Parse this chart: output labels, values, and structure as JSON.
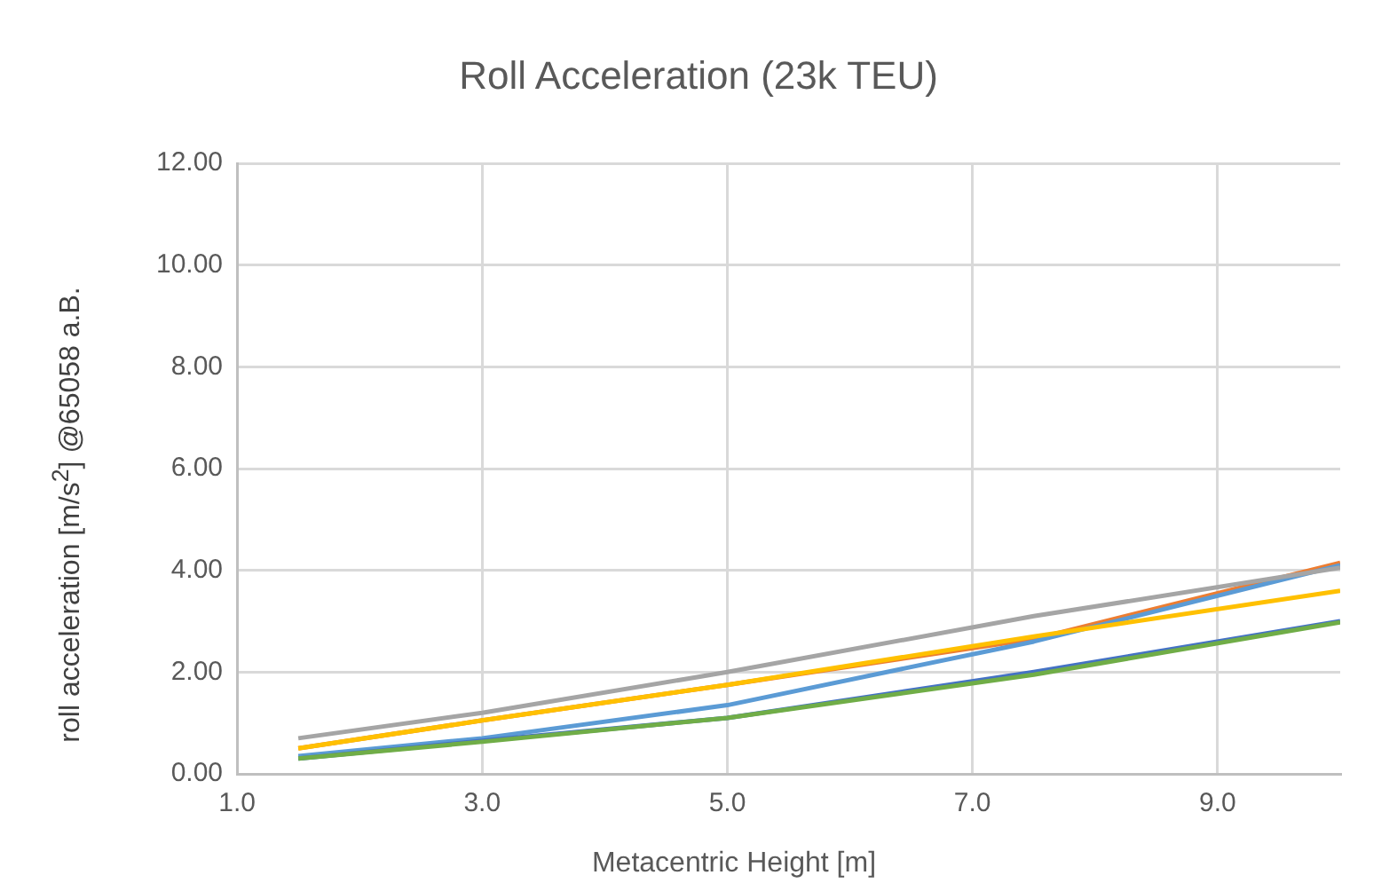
{
  "chart_data": {
    "type": "line",
    "title": "Roll Acceleration (23k TEU)",
    "xlabel": "Metacentric Height [m]",
    "ylabel": "roll acceleration [m/s$^{2}$] @65058 a.B.",
    "x": [
      1.5,
      3,
      5,
      7.5,
      10
    ],
    "xlim": [
      1,
      10
    ],
    "xticks": [
      {
        "value": 1,
        "label": "1.0"
      },
      {
        "value": 3,
        "label": "3.0"
      },
      {
        "value": 5,
        "label": "5.0"
      },
      {
        "value": 7,
        "label": "7.0"
      },
      {
        "value": 9,
        "label": "9.0"
      }
    ],
    "ylim": [
      0,
      12
    ],
    "yticks": [
      {
        "value": 0,
        "label": "0.00"
      },
      {
        "value": 2,
        "label": "2.00"
      },
      {
        "value": 4,
        "label": "4.00"
      },
      {
        "value": 6,
        "label": "6.00"
      },
      {
        "value": 8,
        "label": "8.00"
      },
      {
        "value": 10,
        "label": "10.00"
      },
      {
        "value": 12,
        "label": "12.00"
      }
    ],
    "grid": true,
    "legend": false,
    "marker": "none",
    "line_style": "solid",
    "series": [
      {
        "color": "#ed7d31",
        "values": [
          0.5,
          1.05,
          1.75,
          2.65,
          4.15
        ]
      },
      {
        "color": "#5b9bd5",
        "values": [
          0.35,
          0.7,
          1.35,
          2.6,
          4.1
        ]
      },
      {
        "color": "#a5a5a5",
        "values": [
          0.7,
          1.2,
          2.0,
          3.1,
          4.05
        ]
      },
      {
        "color": "#ffc000",
        "values": [
          0.5,
          1.05,
          1.75,
          2.7,
          3.6
        ]
      },
      {
        "color": "#4472c4",
        "values": [
          0.3,
          0.65,
          1.1,
          2.0,
          3.0
        ]
      },
      {
        "color": "#70ad47",
        "values": [
          0.3,
          0.63,
          1.1,
          1.95,
          2.98
        ]
      }
    ]
  }
}
